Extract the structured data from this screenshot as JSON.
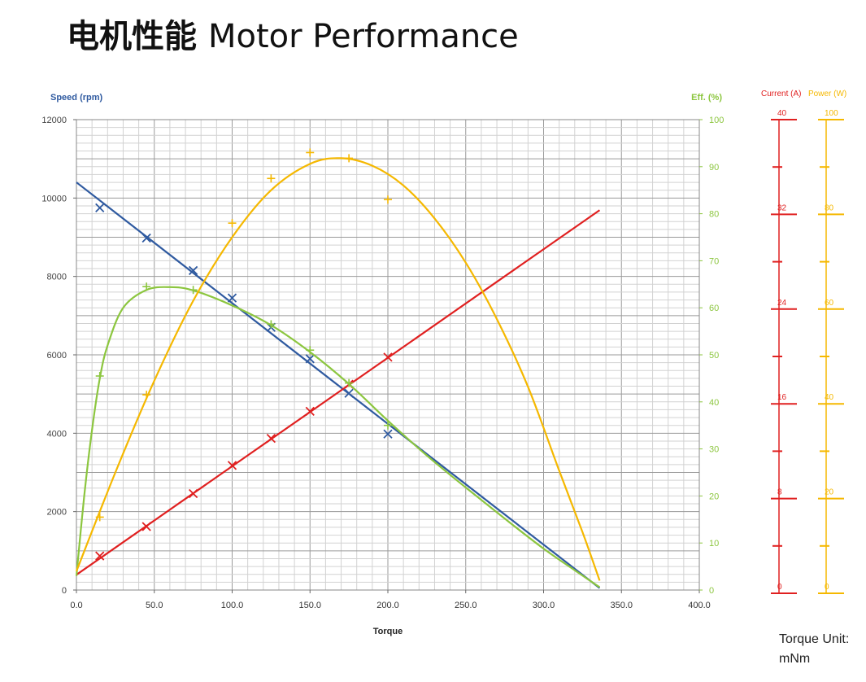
{
  "title": {
    "cn": "电机性能",
    "en": "Motor Performance"
  },
  "torque_unit": {
    "line1": "Torque Unit:",
    "line2": "mNm"
  },
  "chart_data": [
    {
      "type": "scatter",
      "xlabel": "Torque",
      "xlim": [
        0,
        400
      ],
      "xticks": [
        "0.0",
        "50.0",
        "100.0",
        "150.0",
        "200.0",
        "250.0",
        "300.0",
        "350.0",
        "400.0"
      ],
      "axes": {
        "speed": {
          "label": "Speed (rpm)",
          "range": [
            0,
            12000
          ],
          "ticks": [
            "0",
            "2000",
            "4000",
            "6000",
            "8000",
            "10000",
            "12000"
          ],
          "color": "#2f5aa0"
        },
        "eff": {
          "label": "Eff. (%)",
          "range": [
            0,
            100
          ],
          "ticks": [
            "0",
            "10",
            "20",
            "30",
            "40",
            "50",
            "60",
            "70",
            "80",
            "90",
            "100"
          ],
          "color": "#8cc63f"
        },
        "current": {
          "label": "Current (A)",
          "range": [
            0,
            40
          ],
          "ticks": [
            "0",
            "8",
            "16",
            "24",
            "32",
            "40"
          ],
          "color": "#e02020"
        },
        "power": {
          "label": "Power (W)",
          "range": [
            0,
            100
          ],
          "ticks": [
            "0",
            "20",
            "40",
            "60",
            "80",
            "100"
          ],
          "color": "#f5b800"
        }
      },
      "grid": true,
      "series": [
        {
          "axis": "speed",
          "color": "#2f5aa0",
          "marker": "x",
          "points": [
            [
              15,
              9750
            ],
            [
              45,
              8980
            ],
            [
              75,
              8150
            ],
            [
              100,
              7450
            ],
            [
              125,
              6700
            ],
            [
              150,
              5900
            ],
            [
              175,
              5020
            ],
            [
              200,
              3980
            ]
          ],
          "curve": [
            [
              0,
              10400
            ],
            [
              336,
              50
            ]
          ]
        },
        {
          "axis": "current",
          "color": "#e02020",
          "marker": "x",
          "points": [
            [
              15,
              2.9
            ],
            [
              45,
              5.4
            ],
            [
              75,
              8.2
            ],
            [
              100,
              10.6
            ],
            [
              125,
              12.9
            ],
            [
              150,
              15.2
            ],
            [
              175,
              17.5
            ],
            [
              200,
              19.8
            ]
          ],
          "curve": [
            [
              0,
              1.3
            ],
            [
              336,
              32.3
            ]
          ]
        },
        {
          "axis": "eff",
          "color": "#8cc63f",
          "marker": "+",
          "points": [
            [
              15,
              45.5
            ],
            [
              45,
              64.5
            ],
            [
              75,
              63.8
            ],
            [
              125,
              56.5
            ],
            [
              150,
              51
            ],
            [
              175,
              44
            ],
            [
              200,
              35
            ]
          ],
          "curve": [
            [
              0,
              3
            ],
            [
              5,
              20
            ],
            [
              10,
              34
            ],
            [
              15,
              45
            ],
            [
              20,
              52
            ],
            [
              30,
              60
            ],
            [
              45,
              63.8
            ],
            [
              60,
              64.4
            ],
            [
              75,
              63.7
            ],
            [
              100,
              60.5
            ],
            [
              125,
              56.3
            ],
            [
              150,
              50.6
            ],
            [
              175,
              43.8
            ],
            [
              200,
              36
            ],
            [
              225,
              28.6
            ],
            [
              250,
              21.8
            ],
            [
              275,
              15.2
            ],
            [
              300,
              8.8
            ],
            [
              320,
              4.2
            ],
            [
              336,
              0.6
            ]
          ]
        },
        {
          "axis": "power",
          "color": "#f5b800",
          "marker": "+",
          "points": [
            [
              15,
              15.5
            ],
            [
              45,
              41.5
            ],
            [
              100,
              78
            ],
            [
              125,
              87.5
            ],
            [
              150,
              93
            ],
            [
              175,
              91.8
            ],
            [
              200,
              83
            ]
          ],
          "curve": [
            [
              0,
              4
            ],
            [
              25,
              25
            ],
            [
              50,
              44.5
            ],
            [
              75,
              61.5
            ],
            [
              100,
              75
            ],
            [
              125,
              85
            ],
            [
              150,
              90.6
            ],
            [
              170,
              91.8
            ],
            [
              190,
              90.2
            ],
            [
              210,
              86
            ],
            [
              230,
              79
            ],
            [
              250,
              69.6
            ],
            [
              270,
              57.6
            ],
            [
              290,
              43.2
            ],
            [
              310,
              25.4
            ],
            [
              325,
              12.3
            ],
            [
              336,
              2
            ]
          ]
        }
      ]
    }
  ]
}
